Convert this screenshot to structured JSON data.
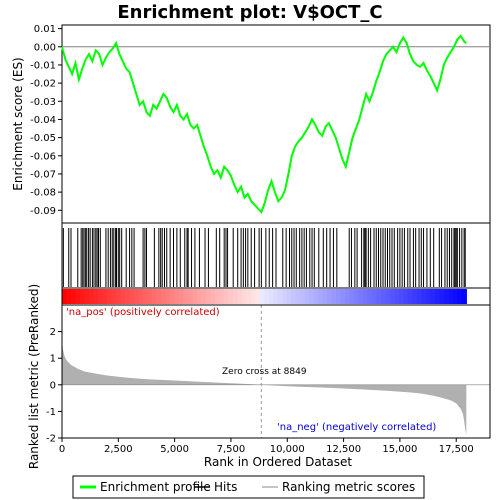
{
  "chart_data": {
    "type": "line",
    "title": "Enrichment plot: V$OCT_C",
    "es_panel": {
      "ylabel": "Enrichment score (ES)",
      "ylim": [
        -0.097,
        0.012
      ],
      "yticks": [
        0.01,
        0.0,
        -0.01,
        -0.02,
        -0.03,
        -0.04,
        -0.05,
        -0.06,
        -0.07,
        -0.08,
        -0.09
      ],
      "ytick_labels": [
        "0.01",
        "0.00",
        "-0.01",
        "-0.02",
        "-0.03",
        "-0.04",
        "-0.05",
        "-0.06",
        "-0.07",
        "-0.08",
        "-0.09"
      ],
      "series": [
        {
          "name": "Enrichment profile",
          "color": "#00ff00",
          "x": [
            0,
            150,
            300,
            450,
            600,
            750,
            900,
            1050,
            1200,
            1350,
            1500,
            1650,
            1800,
            1950,
            2100,
            2250,
            2400,
            2550,
            2700,
            2850,
            3000,
            3150,
            3300,
            3450,
            3600,
            3750,
            3900,
            4050,
            4200,
            4350,
            4500,
            4650,
            4800,
            4950,
            5100,
            5250,
            5400,
            5550,
            5700,
            5850,
            6000,
            6150,
            6300,
            6450,
            6600,
            6750,
            6900,
            7050,
            7200,
            7350,
            7500,
            7650,
            7800,
            7950,
            8100,
            8250,
            8400,
            8550,
            8700,
            8850,
            9000,
            9150,
            9300,
            9450,
            9600,
            9750,
            9900,
            10050,
            10200,
            10350,
            10500,
            10650,
            10800,
            10950,
            11100,
            11250,
            11400,
            11550,
            11700,
            11850,
            12000,
            12150,
            12300,
            12450,
            12600,
            12750,
            12900,
            13050,
            13200,
            13350,
            13500,
            13650,
            13800,
            13950,
            14100,
            14250,
            14400,
            14550,
            14700,
            14850,
            15000,
            15150,
            15300,
            15450,
            15600,
            15750,
            15900,
            16050,
            16200,
            16350,
            16500,
            16650,
            16800,
            16950,
            17100,
            17250,
            17400,
            17550,
            17700,
            17850,
            17950
          ],
          "y": [
            0.0,
            -0.007,
            -0.011,
            -0.015,
            -0.009,
            -0.018,
            -0.012,
            -0.007,
            -0.004,
            -0.008,
            -0.002,
            -0.004,
            -0.01,
            -0.006,
            -0.003,
            -0.001,
            0.002,
            -0.004,
            -0.008,
            -0.012,
            -0.014,
            -0.02,
            -0.026,
            -0.032,
            -0.03,
            -0.036,
            -0.038,
            -0.032,
            -0.034,
            -0.03,
            -0.026,
            -0.028,
            -0.033,
            -0.036,
            -0.032,
            -0.038,
            -0.04,
            -0.037,
            -0.043,
            -0.045,
            -0.043,
            -0.049,
            -0.055,
            -0.06,
            -0.066,
            -0.07,
            -0.068,
            -0.072,
            -0.066,
            -0.068,
            -0.071,
            -0.076,
            -0.08,
            -0.077,
            -0.083,
            -0.081,
            -0.085,
            -0.087,
            -0.089,
            -0.091,
            -0.086,
            -0.079,
            -0.074,
            -0.08,
            -0.085,
            -0.083,
            -0.079,
            -0.07,
            -0.06,
            -0.055,
            -0.052,
            -0.05,
            -0.047,
            -0.044,
            -0.04,
            -0.043,
            -0.047,
            -0.049,
            -0.044,
            -0.042,
            -0.046,
            -0.05,
            -0.056,
            -0.062,
            -0.066,
            -0.058,
            -0.05,
            -0.045,
            -0.04,
            -0.033,
            -0.026,
            -0.03,
            -0.025,
            -0.019,
            -0.014,
            -0.008,
            -0.004,
            -0.002,
            0.0,
            -0.003,
            0.002,
            0.005,
            0.002,
            -0.004,
            -0.008,
            -0.01,
            -0.011,
            -0.009,
            -0.013,
            -0.016,
            -0.02,
            -0.024,
            -0.018,
            -0.01,
            -0.006,
            -0.003,
            0.0,
            0.004,
            0.006,
            0.003,
            0.002
          ]
        }
      ]
    },
    "hits": {
      "name": "Hits",
      "positions": [
        60,
        300,
        400,
        700,
        850,
        920,
        980,
        1050,
        1100,
        1180,
        1250,
        1350,
        1420,
        1500,
        1560,
        1620,
        1700,
        1950,
        2050,
        2150,
        2230,
        2300,
        2380,
        2420,
        2500,
        2560,
        2650,
        2850,
        3000,
        3100,
        3200,
        3600,
        3680,
        3750,
        4100,
        4300,
        4380,
        4450,
        4550,
        4650,
        4800,
        4950,
        5100,
        5250,
        5450,
        5550,
        5600,
        5750,
        5900,
        6100,
        6350,
        6500,
        6850,
        7000,
        7200,
        7280,
        7350,
        7600,
        7800,
        7950,
        8050,
        8150,
        8250,
        8400,
        8550,
        8750,
        8850,
        9050,
        9200,
        9350,
        9500,
        9800,
        9950,
        10100,
        10200,
        10300,
        10400,
        10550,
        10650,
        10750,
        10850,
        11000,
        11100,
        11200,
        11400,
        11600,
        11750,
        11900,
        12050,
        12200,
        12750,
        12850,
        13000,
        13100,
        13300,
        13400,
        13450,
        13500,
        13600,
        13700,
        13850,
        13950,
        14050,
        14150,
        14250,
        14350,
        14450,
        14550,
        14650,
        14750,
        14900,
        15000,
        15100,
        15200,
        15350,
        15450,
        15600,
        15700,
        15850,
        15950,
        16050,
        16200,
        16350,
        16500,
        16750,
        16850,
        17000,
        17100,
        17200,
        17300,
        17400,
        17450,
        17500,
        17550,
        17650,
        17750,
        17850,
        17900
      ]
    },
    "rank_bar": {
      "pos_color": "#ff0000",
      "neg_color": "#0000ff",
      "mid_color": "#ffffff"
    },
    "metric_panel": {
      "ylabel": "Ranked list metric (PreRanked)",
      "ylim": [
        -2.0,
        3.0
      ],
      "yticks": [
        2,
        1,
        0,
        -1,
        -2
      ],
      "ytick_labels": [
        "2",
        "1",
        "0",
        "-1",
        "-2"
      ],
      "fill_color": "#b0b0b0",
      "x": [
        0,
        50,
        100,
        200,
        400,
        700,
        1000,
        1500,
        2000,
        2500,
        3000,
        3500,
        4000,
        5000,
        6000,
        7000,
        8000,
        8849,
        9500,
        10500,
        11500,
        12500,
        13500,
        14500,
        15500,
        16000,
        16500,
        17000,
        17300,
        17500,
        17700,
        17800,
        17850,
        17900,
        17950
      ],
      "y": [
        1.6,
        1.3,
        1.1,
        0.92,
        0.75,
        0.6,
        0.5,
        0.42,
        0.35,
        0.3,
        0.26,
        0.23,
        0.2,
        0.16,
        0.12,
        0.08,
        0.04,
        0.0,
        -0.03,
        -0.07,
        -0.1,
        -0.14,
        -0.18,
        -0.23,
        -0.29,
        -0.34,
        -0.41,
        -0.52,
        -0.6,
        -0.7,
        -0.9,
        -1.1,
        -1.35,
        -1.65,
        -1.9
      ]
    },
    "xaxis": {
      "label": "Rank in Ordered Dataset",
      "xlim": [
        0,
        19000
      ],
      "ticks": [
        0,
        2500,
        5000,
        7500,
        10000,
        12500,
        15000,
        17500
      ],
      "tick_labels": [
        "0",
        "2,500",
        "5,000",
        "7,500",
        "10,000",
        "12,500",
        "15,000",
        "17,500"
      ]
    },
    "annotations": {
      "pos_label": "'na_pos' (positively correlated)",
      "neg_label": "'na_neg' (negatively correlated)",
      "zero_cross": "Zero cross at 8849",
      "zero_cross_x": 8849
    },
    "legend": [
      {
        "label": "Enrichment profile",
        "kind": "line",
        "color": "#00ff00"
      },
      {
        "label": "Hits",
        "kind": "line",
        "color": "#000000"
      },
      {
        "label": "Ranking metric scores",
        "kind": "line",
        "color": "#b0b0b0"
      }
    ],
    "grid": false,
    "legend_position": "bottom"
  }
}
